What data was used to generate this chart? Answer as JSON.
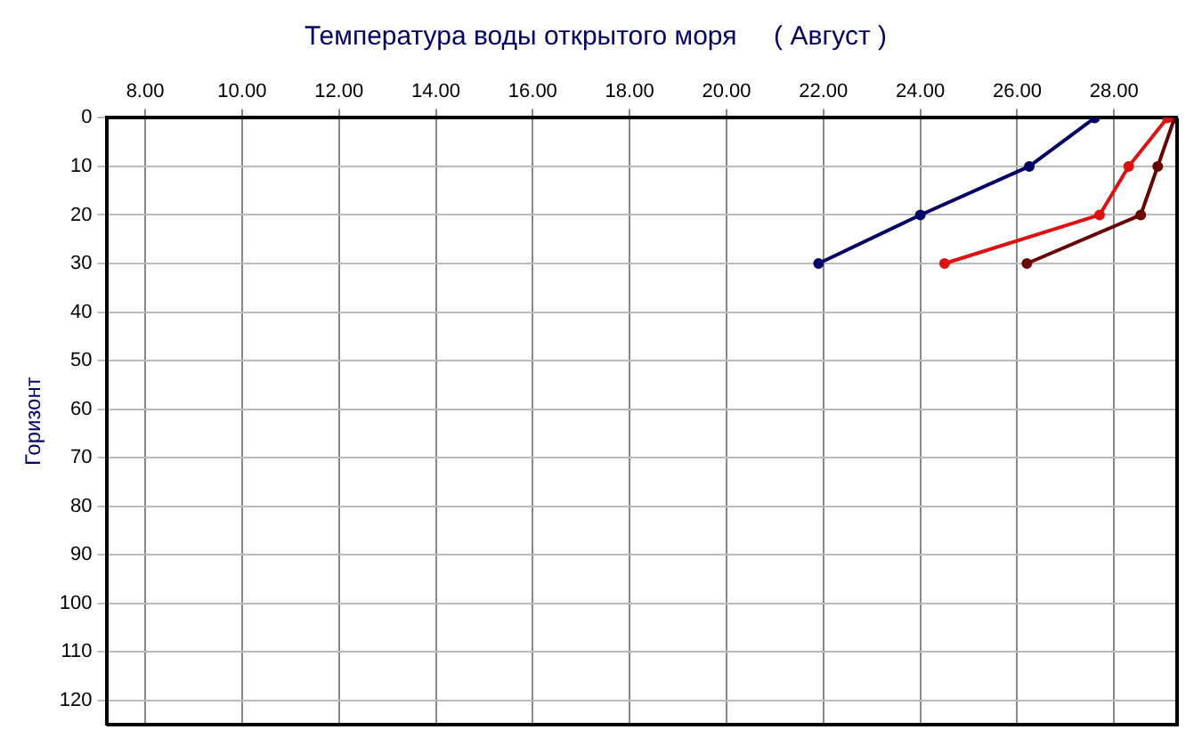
{
  "chart_data": {
    "type": "line",
    "title": "Температура воды открытого моря     ( Август )",
    "ylabel": "Горизонт",
    "xlim": [
      7.2,
      29.3
    ],
    "ylim": [
      125,
      0
    ],
    "xticks": [
      {
        "value": 8,
        "label": "8.00"
      },
      {
        "value": 10,
        "label": "10.00"
      },
      {
        "value": 12,
        "label": "12.00"
      },
      {
        "value": 14,
        "label": "14.00"
      },
      {
        "value": 16,
        "label": "16.00"
      },
      {
        "value": 18,
        "label": "18.00"
      },
      {
        "value": 20,
        "label": "20.00"
      },
      {
        "value": 22,
        "label": "22.00"
      },
      {
        "value": 24,
        "label": "24.00"
      },
      {
        "value": 26,
        "label": "26.00"
      },
      {
        "value": 28,
        "label": "28.00"
      }
    ],
    "yticks": [
      0,
      10,
      20,
      30,
      40,
      50,
      60,
      70,
      80,
      90,
      100,
      110,
      120
    ],
    "grid": true,
    "legend": false,
    "marker": "circle",
    "line_style": "solid",
    "series": [
      {
        "color": "#000066",
        "x": [
          27.6,
          26.25,
          24.0,
          21.9
        ],
        "values": [
          0,
          10,
          20,
          30
        ]
      },
      {
        "color": "#e01010",
        "x": [
          29.1,
          28.3,
          27.7,
          24.5
        ],
        "values": [
          0,
          10,
          20,
          30
        ]
      },
      {
        "color": "#6b0000",
        "x": [
          29.25,
          28.9,
          28.55,
          26.2
        ],
        "values": [
          0,
          10,
          20,
          30
        ]
      }
    ]
  }
}
